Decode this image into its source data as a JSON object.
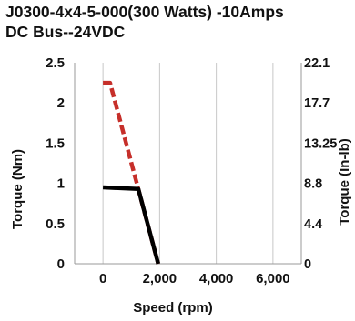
{
  "chart_data": {
    "type": "line",
    "title_lines": [
      "J0300-4x4-5-000(300 Watts)  -10Amps",
      "DC Bus--24VDC"
    ],
    "xlabel": "Speed (rpm)",
    "ylabel_left": "Torque (Nm)",
    "ylabel_right": "Torque (In-lb)",
    "xlim": [
      -1000,
      7000
    ],
    "ylim": [
      0,
      2.5
    ],
    "x_ticks": [
      0,
      2000,
      4000,
      6000
    ],
    "x_tick_labels": [
      "0",
      "2,000",
      "4,000",
      "6,000"
    ],
    "y_ticks_left": [
      0,
      0.5,
      1,
      1.5,
      2,
      2.5
    ],
    "y_tick_labels_left": [
      "0",
      "0.5",
      "1",
      "1.5",
      "2",
      "2.5"
    ],
    "y_ticks_right": [
      0,
      0.5,
      1,
      1.5,
      2,
      2.5
    ],
    "y_tick_labels_right": [
      "0",
      "4.4",
      "8.8",
      "13.25",
      "17.7",
      "22.1"
    ],
    "grid": "vertical",
    "legend": "none",
    "series": [
      {
        "style": "dashed",
        "color": "#c62f2a",
        "x": [
          0,
          250,
          1950
        ],
        "y": [
          2.25,
          2.25,
          0
        ]
      },
      {
        "style": "solid",
        "color": "#000000",
        "x": [
          0,
          1250,
          1950
        ],
        "y": [
          0.95,
          0.93,
          0
        ]
      }
    ]
  }
}
